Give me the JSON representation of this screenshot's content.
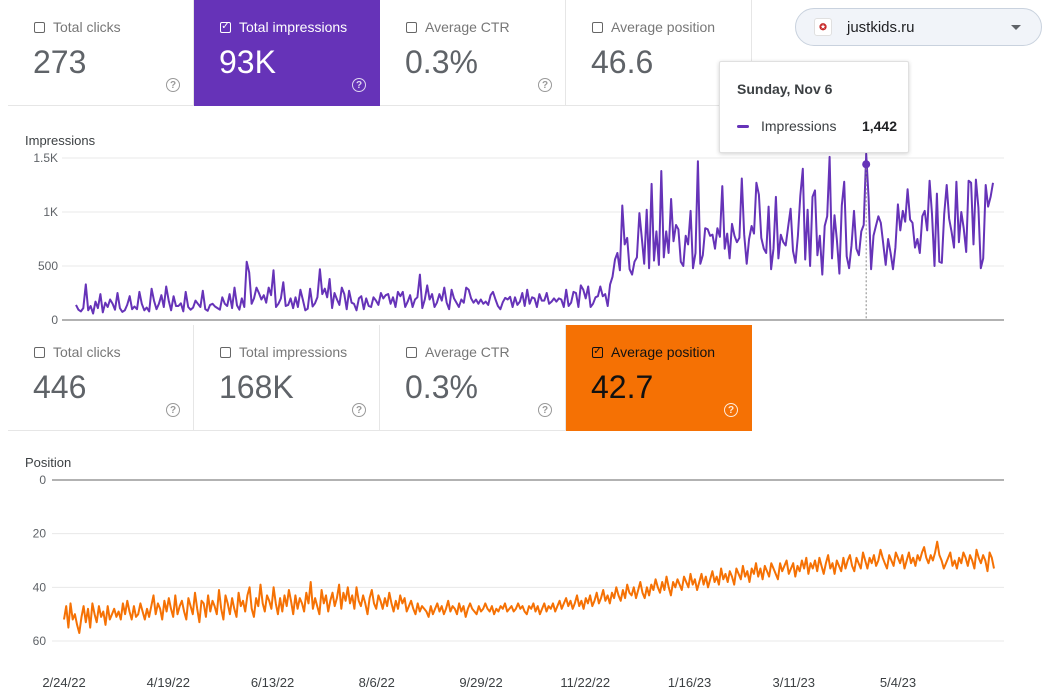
{
  "site": {
    "name": "justkids.ru",
    "favicon": "site-favicon-icon"
  },
  "metrics_top": [
    {
      "label": "Total clicks",
      "value": "273",
      "selected": false
    },
    {
      "label": "Total impressions",
      "value": "93K",
      "selected": true,
      "color": "#6633b8"
    },
    {
      "label": "Average CTR",
      "value": "0.3%",
      "selected": false
    },
    {
      "label": "Average position",
      "value": "46.6",
      "selected": false
    }
  ],
  "metrics_bottom": [
    {
      "label": "Total clicks",
      "value": "446",
      "selected": false
    },
    {
      "label": "Total impressions",
      "value": "168K",
      "selected": false
    },
    {
      "label": "Average CTR",
      "value": "0.3%",
      "selected": false
    },
    {
      "label": "Average position",
      "value": "42.7",
      "selected": true,
      "color": "#f57104"
    }
  ],
  "tooltip": {
    "date": "Sunday, Nov 6",
    "series": "Impressions",
    "value": "1,442"
  },
  "chart_data": [
    {
      "type": "line",
      "ylabel": "Impressions",
      "ylim": [
        0,
        1500
      ],
      "yticks": [
        "0",
        "500",
        "1K",
        "1.5K"
      ],
      "color": "#6633b8",
      "grid": true,
      "series": [
        {
          "values": [
            140,
            95,
            80,
            110,
            330,
            90,
            130,
            60,
            170,
            110,
            240,
            70,
            160,
            120,
            190,
            150,
            95,
            250,
            110,
            75,
            90,
            140,
            220,
            100,
            125,
            100,
            260,
            150,
            90,
            115,
            80,
            290,
            180,
            100,
            150,
            230,
            120,
            310,
            180,
            90,
            220,
            130,
            130,
            155,
            80,
            260,
            120,
            95,
            115,
            180,
            150,
            120,
            270,
            100,
            85,
            140,
            150,
            125,
            110,
            95,
            210,
            150,
            130,
            240,
            110,
            300,
            135,
            95,
            200,
            120,
            540,
            440,
            150,
            200,
            300,
            250,
            190,
            230,
            160,
            300,
            230,
            460,
            120,
            150,
            200,
            350,
            130,
            140,
            200,
            110,
            210,
            120,
            280,
            190,
            90,
            105,
            290,
            125,
            155,
            210,
            470,
            240,
            290,
            210,
            380,
            110,
            250,
            190,
            140,
            300,
            240,
            100,
            270,
            160,
            150,
            90,
            200,
            220,
            100,
            200,
            130,
            120,
            210,
            180,
            140,
            250,
            200,
            230,
            240,
            150,
            210,
            120,
            260,
            220,
            260,
            120,
            170,
            230,
            120,
            190,
            210,
            420,
            110,
            190,
            320,
            190,
            240,
            120,
            160,
            240,
            180,
            300,
            160,
            100,
            280,
            200,
            160,
            120,
            190,
            160,
            300,
            280,
            200,
            160,
            190,
            150,
            190,
            150,
            170,
            140,
            230,
            260,
            190,
            130,
            100,
            165,
            205,
            190,
            215,
            120,
            210,
            140,
            170,
            250,
            130,
            280,
            150,
            210,
            200,
            120,
            240,
            180,
            180,
            250,
            150,
            170,
            200,
            170,
            200,
            190,
            120,
            280,
            130,
            160,
            260,
            250,
            120,
            320,
            280,
            200,
            310,
            120,
            150,
            210,
            220,
            310,
            220,
            240,
            130,
            330,
            400,
            560,
            620,
            460,
            1060,
            700,
            760,
            470,
            420,
            540,
            580,
            990,
            760,
            520,
            1020,
            480,
            1260,
            550,
            820,
            510,
            1380,
            580,
            820,
            620,
            1120,
            730,
            880,
            840,
            540,
            500,
            780,
            700,
            1010,
            480,
            620,
            1470,
            520,
            600,
            850,
            840,
            780,
            790,
            660,
            850,
            770,
            1240,
            660,
            800,
            570,
            890,
            780,
            720,
            760,
            1310,
            790,
            520,
            750,
            870,
            800,
            1270,
            1160,
            760,
            660,
            620,
            1050,
            470,
            660,
            1140,
            570,
            790,
            720,
            690,
            860,
            1030,
            640,
            530,
            780,
            1150,
            1400,
            560,
            1020,
            500,
            1140,
            1200,
            600,
            780,
            420,
            870,
            960,
            1510,
            570,
            970,
            740,
            430,
            1060,
            1280,
            590,
            480,
            690,
            1010,
            660,
            600,
            820,
            880,
            1540,
            1130,
            470,
            780,
            870,
            960,
            900,
            700,
            510,
            750,
            620,
            470,
            670,
            1070,
            830,
            1010,
            910,
            1210,
            930,
            900,
            670,
            750,
            620,
            960,
            1010,
            830,
            1290,
            980,
            500,
            1170,
            540,
            530,
            980,
            1250,
            940,
            820,
            670,
            1280,
            720,
            1000,
            850,
            630,
            1290,
            1270,
            700,
            1300,
            1040,
            480,
            570,
            1250,
            1050,
            1140,
            1270
          ]
        }
      ],
      "highlight": {
        "x": "Sunday, Nov 6",
        "y": 1442
      }
    },
    {
      "type": "line",
      "ylabel": "Position",
      "ylim": [
        0,
        60
      ],
      "y_inverted": true,
      "yticks": [
        "0",
        "20",
        "40",
        "60"
      ],
      "xticks": [
        "2/24/22",
        "4/19/22",
        "6/13/22",
        "8/6/22",
        "9/29/22",
        "11/22/22",
        "1/16/23",
        "3/11/23",
        "5/4/23"
      ],
      "color": "#f57104",
      "grid": true,
      "series": [
        {
          "values": [
            52,
            47,
            55,
            46,
            52,
            50,
            54,
            57,
            51,
            47,
            53,
            48,
            55,
            46,
            50,
            53,
            47,
            51,
            49,
            54,
            47,
            52,
            50,
            48,
            51,
            49,
            52,
            46,
            50,
            45,
            49,
            52,
            47,
            51,
            50,
            46,
            49,
            52,
            48,
            51,
            47,
            43,
            50,
            46,
            48,
            52,
            45,
            49,
            44,
            48,
            51,
            43,
            50,
            47,
            45,
            49,
            52,
            44,
            47,
            50,
            42,
            48,
            53,
            45,
            46,
            51,
            43,
            49,
            45,
            47,
            50,
            41,
            48,
            52,
            43,
            46,
            50,
            44,
            48,
            51,
            42,
            47,
            45,
            49,
            43,
            40,
            48,
            51,
            44,
            47,
            39,
            46,
            49,
            43,
            45,
            48,
            40,
            46,
            50,
            44,
            49,
            43,
            47,
            41,
            45,
            50,
            43,
            48,
            44,
            46,
            49,
            42,
            46,
            38,
            48,
            44,
            47,
            50,
            41,
            46,
            43,
            49,
            45,
            42,
            47,
            44,
            39,
            48,
            42,
            45,
            40,
            46,
            43,
            48,
            40,
            45,
            47,
            43,
            46,
            50,
            44,
            41,
            46,
            48,
            43,
            45,
            48,
            44,
            47,
            42,
            46,
            49,
            45,
            48,
            43,
            46,
            44,
            49,
            47,
            45,
            48,
            50,
            46,
            49,
            47,
            48,
            49,
            51,
            47,
            50,
            48,
            46,
            49,
            47,
            50,
            48,
            45,
            49,
            47,
            48,
            50,
            46,
            49,
            47,
            51,
            48,
            46,
            48,
            49,
            50,
            47,
            49,
            48,
            46,
            48,
            49,
            47,
            50,
            48,
            49,
            47,
            48,
            46,
            49,
            48,
            47,
            49,
            48,
            46,
            48,
            47,
            49,
            50,
            47,
            48,
            46,
            49,
            47,
            50,
            48,
            46,
            49,
            47,
            48,
            46,
            49,
            47,
            45,
            48,
            46,
            44,
            47,
            45,
            48,
            46,
            43,
            47,
            45,
            48,
            44,
            46,
            43,
            47,
            45,
            42,
            46,
            44,
            41,
            45,
            43,
            46,
            42,
            44,
            40,
            43,
            45,
            41,
            44,
            39,
            42,
            43,
            40,
            44,
            41,
            38,
            42,
            44,
            40,
            43,
            39,
            41,
            37,
            40,
            42,
            38,
            41,
            36,
            40,
            43,
            38,
            40,
            37,
            39,
            41,
            36,
            38,
            40,
            35,
            39,
            37,
            41,
            38,
            35,
            39,
            36,
            40,
            37,
            34,
            38,
            36,
            39,
            33,
            37,
            35,
            38,
            34,
            36,
            39,
            33,
            35,
            37,
            32,
            36,
            34,
            38,
            33,
            35,
            31,
            36,
            33,
            37,
            32,
            34,
            36,
            31,
            33,
            35,
            37,
            31,
            34,
            32,
            30,
            35,
            33,
            31,
            36,
            32,
            34,
            30,
            33,
            29,
            35,
            31,
            33,
            30,
            34,
            29,
            32,
            35,
            31,
            28,
            33,
            31,
            35,
            30,
            32,
            34,
            29,
            33,
            30,
            28,
            32,
            34,
            29,
            31,
            33,
            27,
            30,
            33,
            29,
            31,
            28,
            32,
            30,
            26,
            29,
            31,
            33,
            28,
            30,
            32,
            27,
            29,
            31,
            28,
            33,
            30,
            27,
            31,
            29,
            32,
            28,
            30,
            27,
            25,
            29,
            31,
            28,
            30,
            27,
            23,
            28,
            30,
            33,
            31,
            29,
            27,
            32,
            30,
            33,
            29,
            31,
            27,
            29,
            32,
            28,
            30,
            33,
            26,
            29,
            31,
            28,
            30,
            34,
            27,
            29,
            33
          ]
        }
      ]
    }
  ]
}
